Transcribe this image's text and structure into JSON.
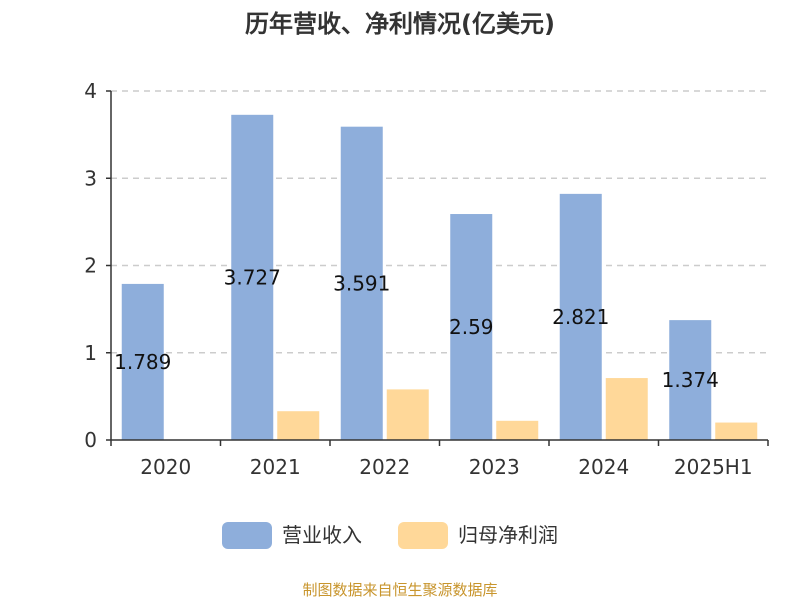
{
  "chart_data": {
    "type": "bar",
    "title": "历年营收、净利情况(亿美元)",
    "categories": [
      "2020",
      "2021",
      "2022",
      "2023",
      "2024",
      "2025H1"
    ],
    "series": [
      {
        "name": "营业收入",
        "color": "#8eaedb",
        "values": [
          1.789,
          3.727,
          3.591,
          2.59,
          2.821,
          1.374
        ],
        "labels": [
          "1.789",
          "3.727",
          "3.591",
          "2.59",
          "2.821",
          "1.374"
        ]
      },
      {
        "name": "归母净利润",
        "color": "#ffd899",
        "values": [
          0.005,
          0.33,
          0.58,
          0.22,
          0.71,
          0.2
        ]
      }
    ],
    "ylim": [
      0,
      4
    ],
    "yticks": [
      "0",
      "1",
      "2",
      "3",
      "4"
    ],
    "grid": true,
    "legend_position": "bottom",
    "source": "制图数据来自恒生聚源数据库"
  }
}
